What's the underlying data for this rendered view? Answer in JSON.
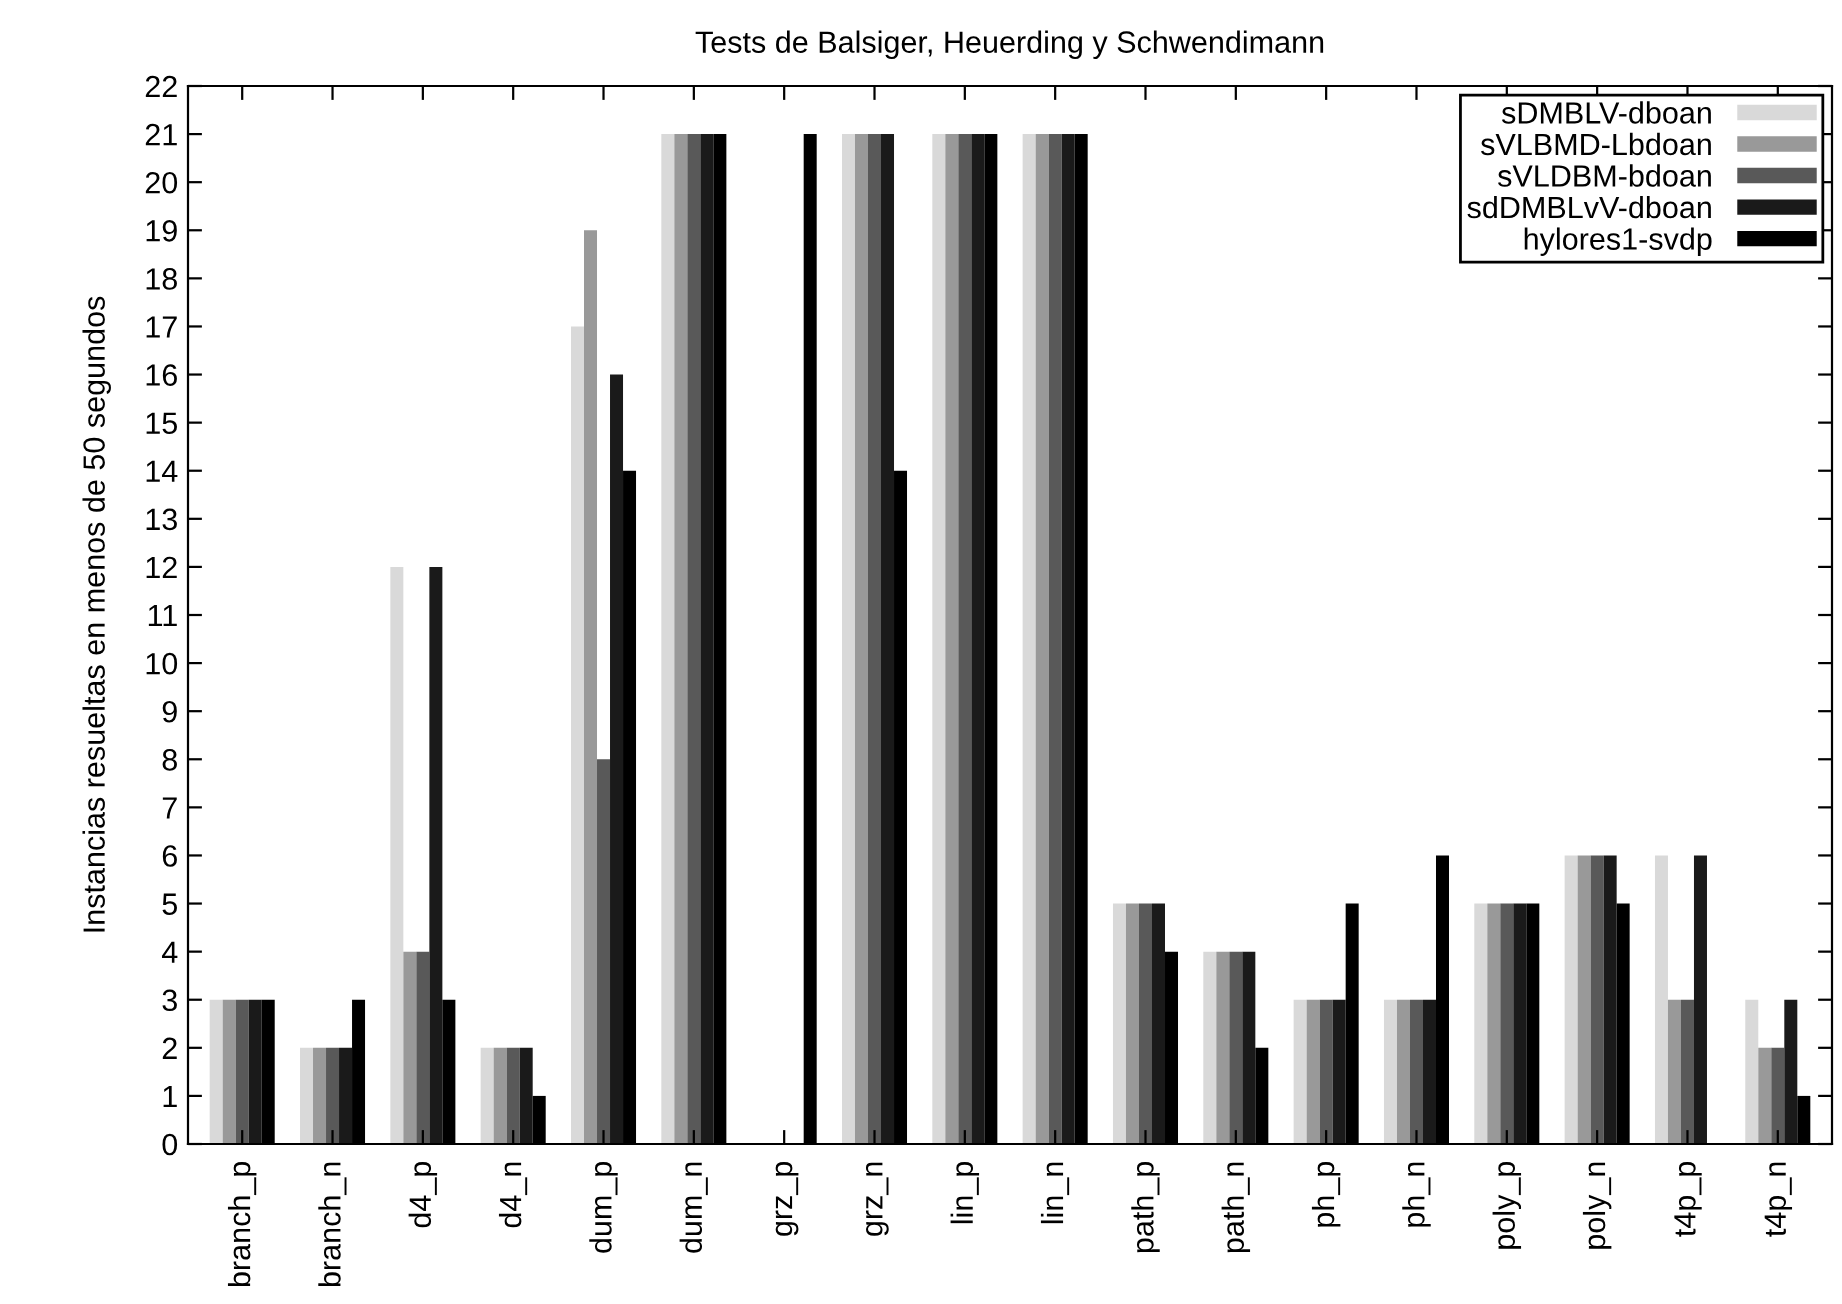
{
  "chart_data": {
    "type": "bar",
    "title": "Tests de Balsiger, Heuerding y Schwendimann",
    "ylabel": "Instancias resueltas en menos de 50 segundos",
    "categories": [
      "branch_p",
      "branch_n",
      "d4_p",
      "d4_n",
      "dum_p",
      "dum_n",
      "grz_p",
      "grz_n",
      "lin_p",
      "lin_n",
      "path_p",
      "path_n",
      "ph_p",
      "ph_n",
      "poly_p",
      "poly_n",
      "t4p_p",
      "t4p_n"
    ],
    "series": [
      {
        "name": "sDMBLV-dboan",
        "color": "#d9d9d9",
        "values": [
          3,
          2,
          12,
          2,
          17,
          21,
          0,
          21,
          21,
          21,
          5,
          4,
          3,
          3,
          5,
          6,
          6,
          3
        ]
      },
      {
        "name": "sVLBMD-Lbdoan",
        "color": "#999999",
        "values": [
          3,
          2,
          4,
          2,
          19,
          21,
          0,
          21,
          21,
          21,
          5,
          4,
          3,
          3,
          5,
          6,
          3,
          2
        ]
      },
      {
        "name": "sVLDBM-bdoan",
        "color": "#595959",
        "values": [
          3,
          2,
          4,
          2,
          8,
          21,
          0,
          21,
          21,
          21,
          5,
          4,
          3,
          3,
          5,
          6,
          3,
          2
        ]
      },
      {
        "name": "sdDMBLvV-dboan",
        "color": "#1a1a1a",
        "values": [
          3,
          2,
          12,
          2,
          16,
          21,
          0,
          21,
          21,
          21,
          5,
          4,
          3,
          3,
          5,
          6,
          6,
          3
        ]
      },
      {
        "name": "hylores1-svdp",
        "color": "#000000",
        "values": [
          3,
          3,
          3,
          1,
          14,
          21,
          21,
          14,
          21,
          21,
          4,
          2,
          5,
          6,
          5,
          5,
          0,
          1
        ]
      }
    ],
    "ylim": [
      0,
      22
    ],
    "yticks": [
      0,
      1,
      2,
      3,
      4,
      5,
      6,
      7,
      8,
      9,
      10,
      11,
      12,
      13,
      14,
      15,
      16,
      17,
      18,
      19,
      20,
      21,
      22
    ],
    "grid": false,
    "legend": "top right"
  }
}
